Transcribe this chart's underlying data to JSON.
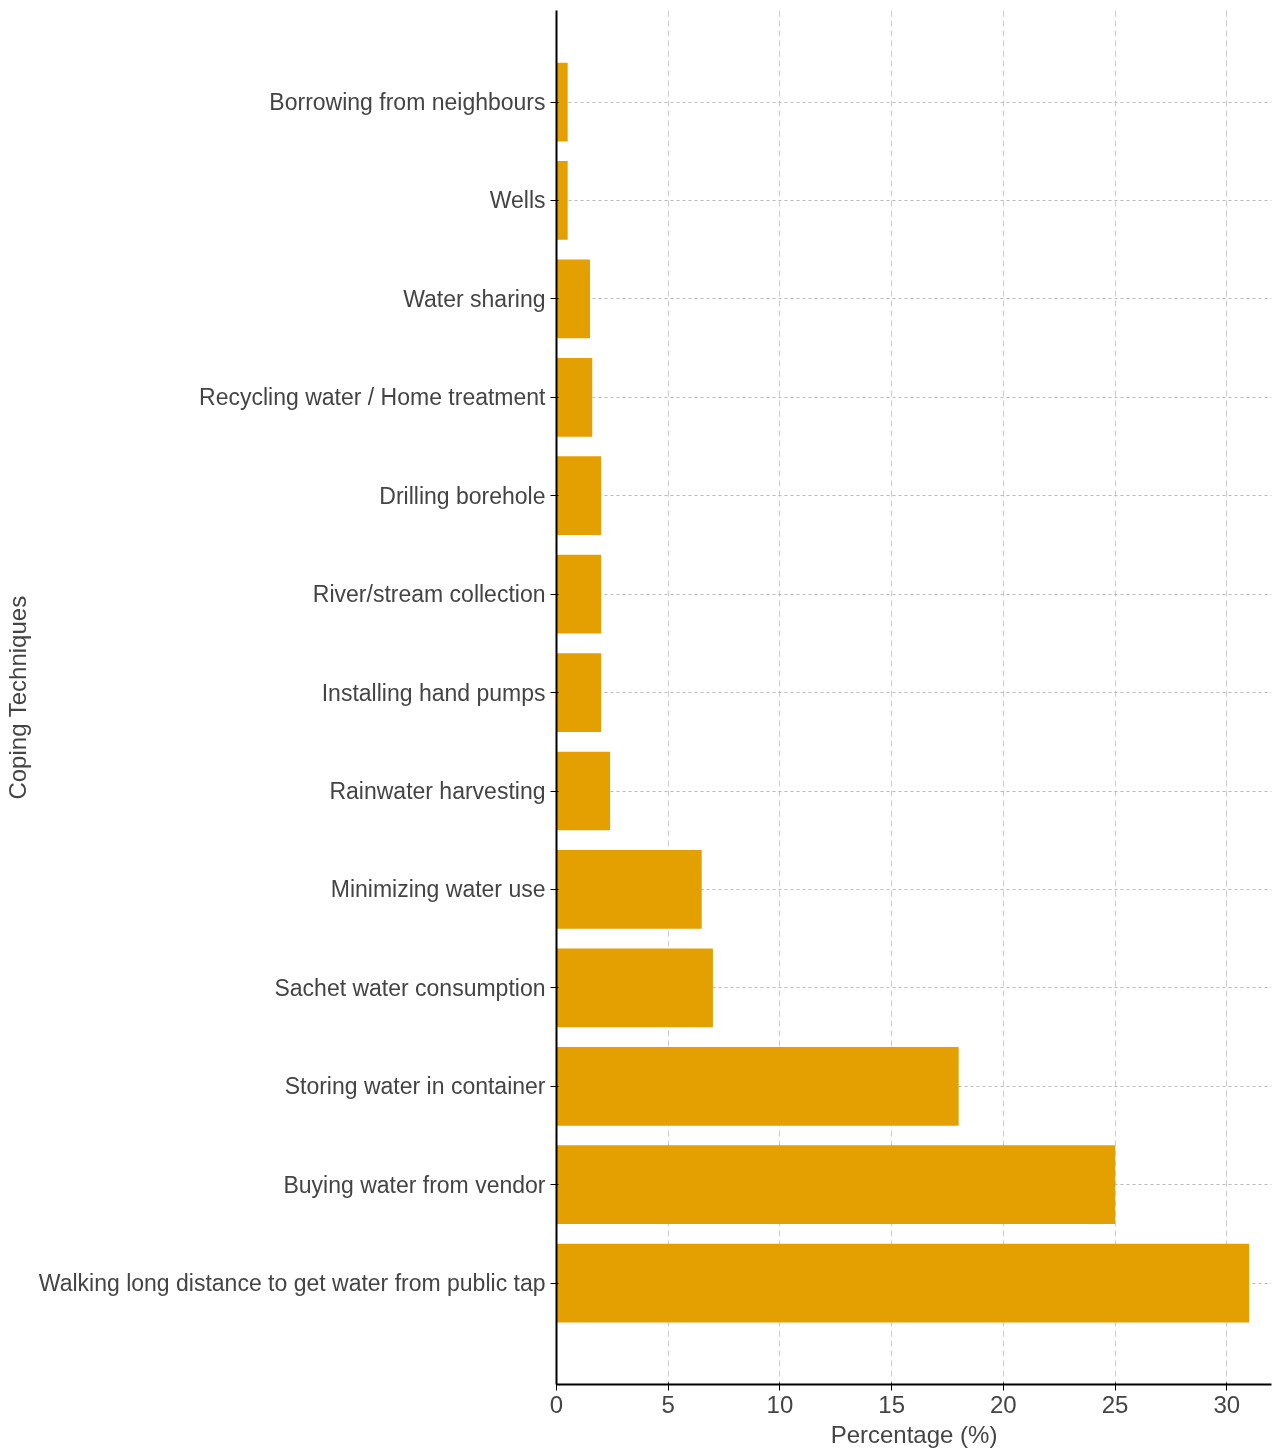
{
  "chart_data": {
    "type": "bar",
    "orientation": "horizontal",
    "ylabel": "Coping Techniques",
    "xlabel": "Percentage (%)",
    "categories": [
      "Borrowing from neighbours",
      "Wells",
      "Water sharing",
      "Recycling water / Home treatment",
      "Drilling borehole",
      "River/stream collection",
      "Installing hand pumps",
      "Rainwater harvesting",
      "Minimizing water use",
      "Sachet water consumption",
      "Storing water in container",
      "Buying water from vendor",
      "Walking long distance to get water from public tap"
    ],
    "values": [
      0.5,
      0.5,
      1.5,
      1.6,
      2,
      2,
      2,
      2.4,
      6.5,
      7,
      18,
      25,
      31
    ],
    "color": "#e3a000",
    "xlim": [
      0,
      32
    ],
    "xticks": [
      0,
      5,
      10,
      15,
      20,
      25,
      30
    ],
    "grid": true
  }
}
